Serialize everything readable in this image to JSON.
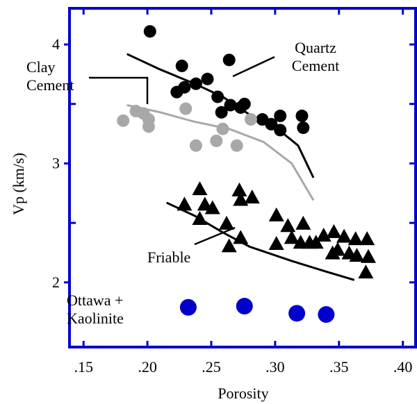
{
  "chart_data": {
    "type": "scatter",
    "xlabel": "Porosity",
    "ylabel": "Vp (km/s)",
    "xlim": [
      0.139,
      0.41
    ],
    "ylim": [
      1.456,
      4.304
    ],
    "xticks": [
      {
        "value": 0.15,
        "label": ".15"
      },
      {
        "value": 0.2,
        "label": ".20"
      },
      {
        "value": 0.25,
        "label": ".25"
      },
      {
        "value": 0.3,
        "label": ".30"
      },
      {
        "value": 0.35,
        "label": ".35"
      },
      {
        "value": 0.4,
        "label": ".40"
      }
    ],
    "yticks": [
      2,
      3,
      4
    ],
    "y_minor_ticks": [
      2.5,
      3.5
    ],
    "frame_color": "#0000cc",
    "series": [
      {
        "name": "Quartz Cement",
        "color": "#000000",
        "marker": "circle",
        "x": [
          0.202,
          0.227,
          0.264,
          0.223,
          0.229,
          0.238,
          0.247,
          0.255,
          0.258,
          0.265,
          0.273,
          0.276,
          0.29,
          0.297,
          0.304,
          0.304,
          0.321,
          0.322
        ],
        "y": [
          4.11,
          3.82,
          3.87,
          3.6,
          3.64,
          3.67,
          3.71,
          3.56,
          3.43,
          3.49,
          3.47,
          3.5,
          3.37,
          3.33,
          3.4,
          3.28,
          3.4,
          3.3
        ],
        "fit_x": [
          0.184,
          0.21,
          0.237,
          0.259,
          0.28,
          0.302,
          0.318,
          0.33
        ],
        "fit_y": [
          3.92,
          3.79,
          3.67,
          3.56,
          3.41,
          3.29,
          3.15,
          2.88
        ]
      },
      {
        "name": "Clay Cement",
        "color": "#a8a8a8",
        "marker": "circle",
        "x": [
          0.181,
          0.191,
          0.197,
          0.201,
          0.201,
          0.23,
          0.238,
          0.254,
          0.259,
          0.27,
          0.281
        ],
        "y": [
          3.36,
          3.44,
          3.42,
          3.37,
          3.31,
          3.46,
          3.15,
          3.19,
          3.29,
          3.15,
          3.37
        ],
        "fit_x": [
          0.184,
          0.21,
          0.237,
          0.264,
          0.291,
          0.313,
          0.33
        ],
        "fit_y": [
          3.49,
          3.43,
          3.35,
          3.29,
          3.18,
          3.0,
          2.69
        ]
      },
      {
        "name": "Friable",
        "color": "#000000",
        "marker": "triangle",
        "x": [
          0.229,
          0.241,
          0.245,
          0.251,
          0.241,
          0.262,
          0.264,
          0.273,
          0.272,
          0.273,
          0.282,
          0.301,
          0.301,
          0.31,
          0.313,
          0.322,
          0.32,
          0.327,
          0.332,
          0.338,
          0.346,
          0.345,
          0.354,
          0.358,
          0.363,
          0.364,
          0.372,
          0.373,
          0.371,
          0.349
        ],
        "y": [
          2.65,
          2.78,
          2.65,
          2.62,
          2.53,
          2.49,
          2.3,
          2.37,
          2.77,
          2.69,
          2.71,
          2.56,
          2.32,
          2.47,
          2.37,
          2.49,
          2.33,
          2.33,
          2.33,
          2.39,
          2.42,
          2.24,
          2.38,
          2.24,
          2.36,
          2.22,
          2.36,
          2.21,
          2.08,
          2.27
        ],
        "fit_x": [
          0.215,
          0.237,
          0.259,
          0.28,
          0.313,
          0.34,
          0.362
        ],
        "fit_y": [
          2.67,
          2.56,
          2.42,
          2.3,
          2.18,
          2.09,
          2.02
        ]
      },
      {
        "name": "Ottawa + Kaolinite",
        "color": "#0000cc",
        "marker": "circle",
        "x": [
          0.232,
          0.276,
          0.317,
          0.34
        ],
        "y": [
          1.79,
          1.8,
          1.74,
          1.73
        ]
      }
    ]
  }
}
